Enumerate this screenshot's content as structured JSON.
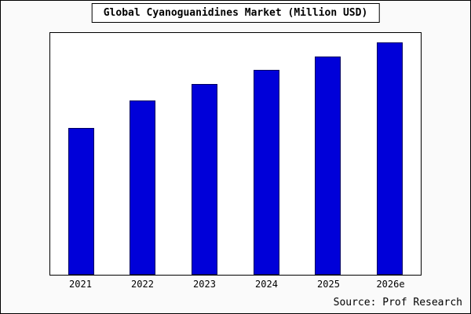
{
  "chart_data": {
    "type": "bar",
    "title": "Global Cyanoguanidines Market (Million USD)",
    "categories": [
      "2021",
      "2022",
      "2023",
      "2024",
      "2025",
      "2026e"
    ],
    "values": [
      63,
      75,
      82,
      88,
      94,
      100
    ],
    "ylim": [
      0,
      104
    ],
    "xlabel": "",
    "ylabel": "",
    "grid": false,
    "legend_position": "none",
    "bar_color": "#0000d9",
    "bar_border_color": "#000060",
    "source": "Source: Prof Research"
  }
}
